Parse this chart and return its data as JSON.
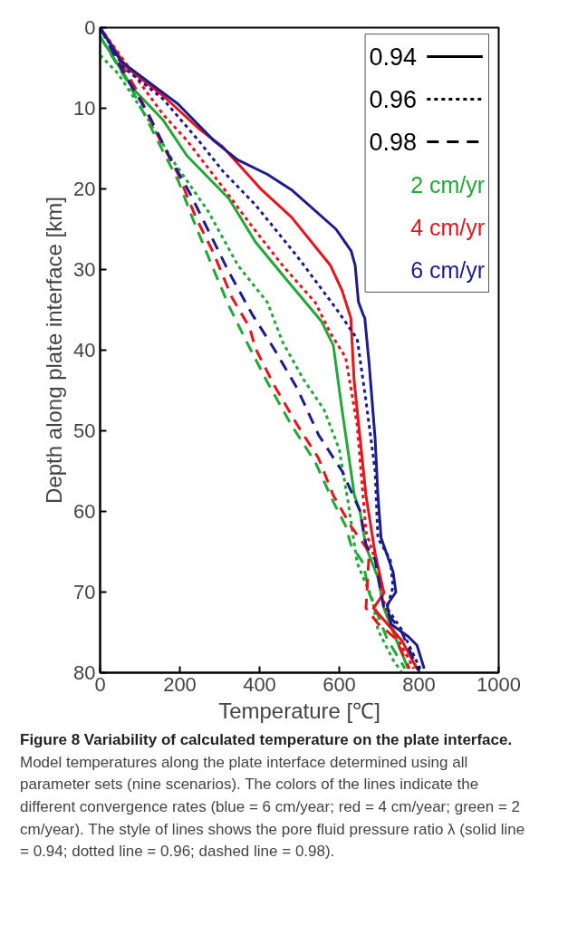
{
  "chart_data": {
    "type": "line",
    "title": "Figure 8 Variability of calculated temperature on the plate interface.",
    "xlabel": "Temperature [℃]",
    "ylabel": "Depth along plate interface [km]",
    "xlim": [
      0,
      1000
    ],
    "ylim": [
      80,
      0
    ],
    "xticks": [
      0,
      200,
      400,
      600,
      800,
      1000
    ],
    "yticks": [
      0,
      10,
      20,
      30,
      40,
      50,
      60,
      70,
      80
    ],
    "grid": false,
    "annotations": [
      "0.94",
      "0.96",
      "0.98",
      "2 cm/yr",
      "4 cm/yr",
      "6 cm/yr",
      "Model temperatures along the plate interface determined using all parameter sets (nine scenarios). The colors of the lines indicate the different convergence rates (blue = 6 cm/year; red = 4 cm/year; green = 2 cm/year). The style of lines shows the pore fluid pressure ratio λ (solid line = 0.94; dotted line = 0.96; dashed line = 0.98)."
    ],
    "series": [
      {
        "color": "#22a838",
        "line_style": "solid",
        "x": [
          0,
          83,
          157,
          218,
          323,
          390,
          465,
          555,
          585,
          607,
          638,
          652,
          667,
          697,
          712,
          742,
          773
        ],
        "values": [
          1.1,
          7.6,
          11.4,
          15.9,
          21.2,
          26.6,
          31.1,
          36.4,
          39.4,
          47.4,
          58,
          60,
          64.4,
          68.2,
          72,
          75.8,
          79.5
        ]
      },
      {
        "color": "#22a838",
        "line_style": "dotted",
        "x": [
          0,
          45,
          121,
          180,
          270,
          346,
          420,
          458,
          510,
          562,
          600,
          622,
          645,
          683,
          697,
          735,
          757
        ],
        "values": [
          3.4,
          5.7,
          11.4,
          16.3,
          22.7,
          29.5,
          34.1,
          39,
          43.6,
          47.4,
          52.3,
          58.8,
          66.4,
          70.9,
          74.7,
          78.4,
          80
        ]
      },
      {
        "color": "#22a838",
        "line_style": "dashed",
        "x": [
          0,
          76,
          144,
          196,
          234,
          278,
          323,
          368,
          420,
          480,
          540,
          585,
          616,
          629,
          660,
          675,
          720,
          765
        ],
        "values": [
          1.1,
          7.3,
          14,
          19,
          23.9,
          29.2,
          34.5,
          39,
          44,
          49.3,
          53.9,
          58.8,
          61.8,
          64.1,
          66.4,
          70.1,
          75.8,
          79.5
        ]
      },
      {
        "color": "#e8141c",
        "line_style": "solid",
        "x": [
          0,
          68,
          157,
          247,
          308,
          405,
          480,
          578,
          607,
          629,
          637,
          667,
          690,
          712,
          686,
          757,
          795
        ],
        "values": [
          0,
          5,
          8.4,
          12.5,
          14.8,
          20.1,
          23.5,
          29.5,
          32.6,
          36,
          43.6,
          58,
          65.2,
          70.1,
          72,
          76,
          79.5
        ]
      },
      {
        "color": "#e8141c",
        "line_style": "dotted",
        "x": [
          0,
          83,
          157,
          218,
          308,
          382,
          458,
          540,
          578,
          616,
          645,
          667,
          697,
          705,
          735,
          787
        ],
        "values": [
          0,
          5.7,
          10.7,
          14,
          19.8,
          24.7,
          29.5,
          34.1,
          37.9,
          40.9,
          49.3,
          62.5,
          67,
          70.1,
          74.7,
          79.5
        ]
      },
      {
        "color": "#e8141c",
        "line_style": "dashed",
        "x": [
          0,
          90,
          144,
          196,
          240,
          285,
          330,
          375,
          390,
          436,
          495,
          548,
          585,
          629,
          675,
          667,
          697,
          742,
          776
        ],
        "values": [
          0,
          7.6,
          13.3,
          18.2,
          23.5,
          28,
          33.4,
          37.2,
          39.8,
          44.3,
          49.3,
          53.4,
          58,
          61.8,
          65,
          72,
          73.9,
          75.8,
          79.5
        ]
      },
      {
        "color": "#1c1c8c",
        "line_style": "solid",
        "x": [
          0,
          53,
          196,
          285,
          345,
          420,
          480,
          592,
          630,
          640,
          648,
          660,
          664,
          675,
          690,
          697,
          705,
          735,
          742,
          720,
          730,
          773,
          795,
          813
        ],
        "values": [
          0,
          4.2,
          9.5,
          14,
          16.4,
          18.2,
          20.1,
          25,
          27.7,
          29.5,
          34,
          35.6,
          36,
          41.7,
          51,
          58,
          63.3,
          67.5,
          70,
          71.6,
          74,
          75.5,
          76.6,
          79.5
        ]
      },
      {
        "color": "#1c1c8c",
        "line_style": "dotted",
        "x": [
          0,
          60,
          157,
          247,
          308,
          390,
          495,
          593,
          645,
          667,
          690,
          697,
          728,
          735,
          720,
          757,
          803
        ],
        "values": [
          0,
          5,
          8.8,
          14,
          17.8,
          22,
          28.4,
          34.9,
          38.6,
          46.3,
          55,
          63.3,
          66,
          69.3,
          72,
          74.7,
          79.5
        ]
      },
      {
        "color": "#1c1c8c",
        "line_style": "dashed",
        "x": [
          0,
          60,
          121,
          173,
          225,
          278,
          323,
          382,
          436,
          495,
          548,
          607,
          652,
          667,
          690,
          712,
          757,
          798
        ],
        "values": [
          0,
          5.7,
          10.7,
          15.9,
          20.5,
          25.8,
          30.3,
          35.6,
          39.8,
          44.8,
          50.5,
          55,
          59.9,
          64.1,
          66,
          72,
          75,
          79.7
        ]
      }
    ]
  }
}
